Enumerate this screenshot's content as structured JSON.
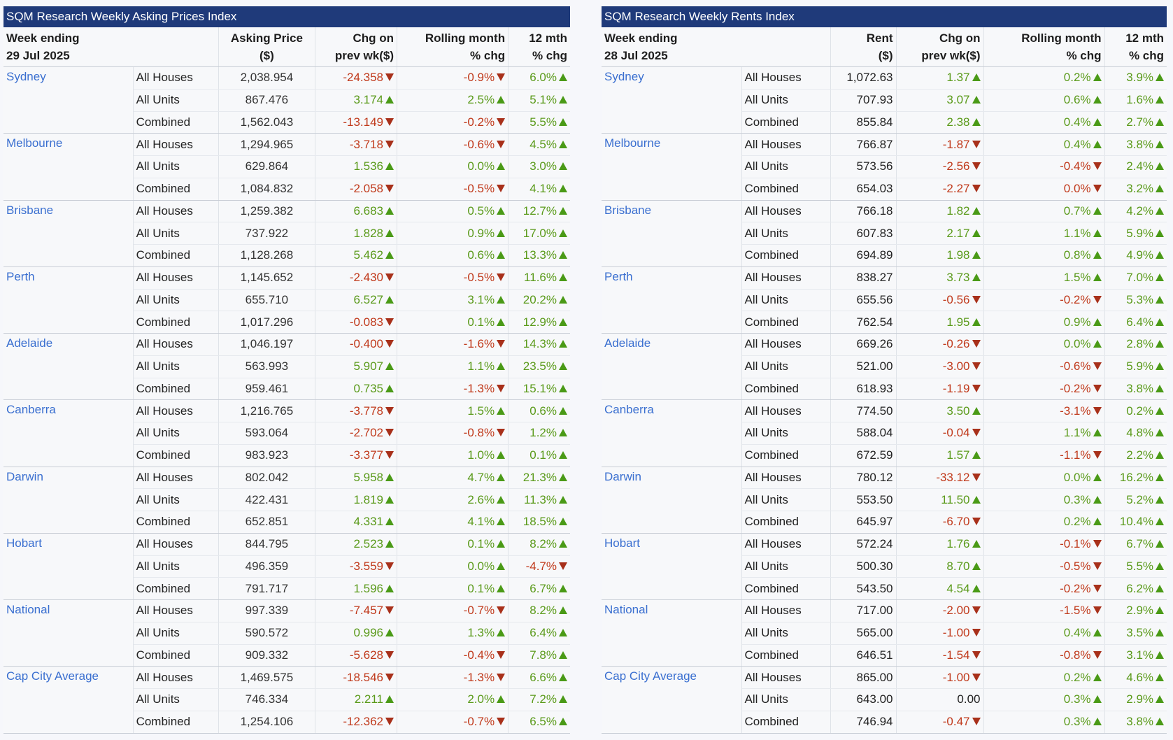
{
  "colors": {
    "header_bg": "#1f3a7a",
    "city": "#3a6fd0",
    "up": "#5a9a1a",
    "down": "#c0391b",
    "up_arrow": "#4a9a16",
    "down_arrow": "#a8301a"
  },
  "asking": {
    "title": "SQM Research Weekly Asking Prices Index",
    "headers": {
      "week_l1": "Week ending",
      "week_l2": "29 Jul 2025",
      "price_l1": "Asking Price",
      "price_l2": "($)",
      "chg_l1": "Chg on",
      "chg_l2": "prev wk($)",
      "roll_l1": "Rolling month",
      "roll_l2": "% chg",
      "mth_l1": "12 mth",
      "mth_l2": "% chg"
    },
    "groups": [
      {
        "city": "Sydney",
        "rows": [
          {
            "type": "All Houses",
            "value": "2,038.954",
            "chg": "-24.358",
            "chg_dir": "down",
            "roll": "-0.9%",
            "roll_dir": "down",
            "yr": "6.0%",
            "yr_dir": "up"
          },
          {
            "type": "All Units",
            "value": "867.476",
            "chg": "3.174",
            "chg_dir": "up",
            "roll": "2.5%",
            "roll_dir": "up",
            "yr": "5.1%",
            "yr_dir": "up"
          },
          {
            "type": "Combined",
            "value": "1,562.043",
            "chg": "-13.149",
            "chg_dir": "down",
            "roll": "-0.2%",
            "roll_dir": "down",
            "yr": "5.5%",
            "yr_dir": "up"
          }
        ]
      },
      {
        "city": "Melbourne",
        "rows": [
          {
            "type": "All Houses",
            "value": "1,294.965",
            "chg": "-3.718",
            "chg_dir": "down",
            "roll": "-0.6%",
            "roll_dir": "down",
            "yr": "4.5%",
            "yr_dir": "up"
          },
          {
            "type": "All Units",
            "value": "629.864",
            "chg": "1.536",
            "chg_dir": "up",
            "roll": "0.0%",
            "roll_dir": "up",
            "yr": "3.0%",
            "yr_dir": "up"
          },
          {
            "type": "Combined",
            "value": "1,084.832",
            "chg": "-2.058",
            "chg_dir": "down",
            "roll": "-0.5%",
            "roll_dir": "down",
            "yr": "4.1%",
            "yr_dir": "up"
          }
        ]
      },
      {
        "city": "Brisbane",
        "rows": [
          {
            "type": "All Houses",
            "value": "1,259.382",
            "chg": "6.683",
            "chg_dir": "up",
            "roll": "0.5%",
            "roll_dir": "up",
            "yr": "12.7%",
            "yr_dir": "up"
          },
          {
            "type": "All Units",
            "value": "737.922",
            "chg": "1.828",
            "chg_dir": "up",
            "roll": "0.9%",
            "roll_dir": "up",
            "yr": "17.0%",
            "yr_dir": "up"
          },
          {
            "type": "Combined",
            "value": "1,128.268",
            "chg": "5.462",
            "chg_dir": "up",
            "roll": "0.6%",
            "roll_dir": "up",
            "yr": "13.3%",
            "yr_dir": "up"
          }
        ]
      },
      {
        "city": "Perth",
        "rows": [
          {
            "type": "All Houses",
            "value": "1,145.652",
            "chg": "-2.430",
            "chg_dir": "down",
            "roll": "-0.5%",
            "roll_dir": "down",
            "yr": "11.6%",
            "yr_dir": "up"
          },
          {
            "type": "All Units",
            "value": "655.710",
            "chg": "6.527",
            "chg_dir": "up",
            "roll": "3.1%",
            "roll_dir": "up",
            "yr": "20.2%",
            "yr_dir": "up"
          },
          {
            "type": "Combined",
            "value": "1,017.296",
            "chg": "-0.083",
            "chg_dir": "down",
            "roll": "0.1%",
            "roll_dir": "up",
            "yr": "12.9%",
            "yr_dir": "up"
          }
        ]
      },
      {
        "city": "Adelaide",
        "rows": [
          {
            "type": "All Houses",
            "value": "1,046.197",
            "chg": "-0.400",
            "chg_dir": "down",
            "roll": "-1.6%",
            "roll_dir": "down",
            "yr": "14.3%",
            "yr_dir": "up"
          },
          {
            "type": "All Units",
            "value": "563.993",
            "chg": "5.907",
            "chg_dir": "up",
            "roll": "1.1%",
            "roll_dir": "up",
            "yr": "23.5%",
            "yr_dir": "up"
          },
          {
            "type": "Combined",
            "value": "959.461",
            "chg": "0.735",
            "chg_dir": "up",
            "roll": "-1.3%",
            "roll_dir": "down",
            "yr": "15.1%",
            "yr_dir": "up"
          }
        ]
      },
      {
        "city": "Canberra",
        "rows": [
          {
            "type": "All Houses",
            "value": "1,216.765",
            "chg": "-3.778",
            "chg_dir": "down",
            "roll": "1.5%",
            "roll_dir": "up",
            "yr": "0.6%",
            "yr_dir": "up"
          },
          {
            "type": "All Units",
            "value": "593.064",
            "chg": "-2.702",
            "chg_dir": "down",
            "roll": "-0.8%",
            "roll_dir": "down",
            "yr": "1.2%",
            "yr_dir": "up"
          },
          {
            "type": "Combined",
            "value": "983.923",
            "chg": "-3.377",
            "chg_dir": "down",
            "roll": "1.0%",
            "roll_dir": "up",
            "yr": "0.1%",
            "yr_dir": "up"
          }
        ]
      },
      {
        "city": "Darwin",
        "rows": [
          {
            "type": "All Houses",
            "value": "802.042",
            "chg": "5.958",
            "chg_dir": "up",
            "roll": "4.7%",
            "roll_dir": "up",
            "yr": "21.3%",
            "yr_dir": "up"
          },
          {
            "type": "All Units",
            "value": "422.431",
            "chg": "1.819",
            "chg_dir": "up",
            "roll": "2.6%",
            "roll_dir": "up",
            "yr": "11.3%",
            "yr_dir": "up"
          },
          {
            "type": "Combined",
            "value": "652.851",
            "chg": "4.331",
            "chg_dir": "up",
            "roll": "4.1%",
            "roll_dir": "up",
            "yr": "18.5%",
            "yr_dir": "up"
          }
        ]
      },
      {
        "city": "Hobart",
        "rows": [
          {
            "type": "All Houses",
            "value": "844.795",
            "chg": "2.523",
            "chg_dir": "up",
            "roll": "0.1%",
            "roll_dir": "up",
            "yr": "8.2%",
            "yr_dir": "up"
          },
          {
            "type": "All Units",
            "value": "496.359",
            "chg": "-3.559",
            "chg_dir": "down",
            "roll": "0.0%",
            "roll_dir": "up",
            "yr": "-4.7%",
            "yr_dir": "down"
          },
          {
            "type": "Combined",
            "value": "791.717",
            "chg": "1.596",
            "chg_dir": "up",
            "roll": "0.1%",
            "roll_dir": "up",
            "yr": "6.7%",
            "yr_dir": "up"
          }
        ]
      },
      {
        "city": "National",
        "rows": [
          {
            "type": "All Houses",
            "value": "997.339",
            "chg": "-7.457",
            "chg_dir": "down",
            "roll": "-0.7%",
            "roll_dir": "down",
            "yr": "8.2%",
            "yr_dir": "up"
          },
          {
            "type": "All Units",
            "value": "590.572",
            "chg": "0.996",
            "chg_dir": "up",
            "roll": "1.3%",
            "roll_dir": "up",
            "yr": "6.4%",
            "yr_dir": "up"
          },
          {
            "type": "Combined",
            "value": "909.332",
            "chg": "-5.628",
            "chg_dir": "down",
            "roll": "-0.4%",
            "roll_dir": "down",
            "yr": "7.8%",
            "yr_dir": "up"
          }
        ]
      },
      {
        "city": "Cap City Average",
        "rows": [
          {
            "type": "All Houses",
            "value": "1,469.575",
            "chg": "-18.546",
            "chg_dir": "down",
            "roll": "-1.3%",
            "roll_dir": "down",
            "yr": "6.6%",
            "yr_dir": "up"
          },
          {
            "type": "All Units",
            "value": "746.334",
            "chg": "2.211",
            "chg_dir": "up",
            "roll": "2.0%",
            "roll_dir": "up",
            "yr": "7.2%",
            "yr_dir": "up"
          },
          {
            "type": "Combined",
            "value": "1,254.106",
            "chg": "-12.362",
            "chg_dir": "down",
            "roll": "-0.7%",
            "roll_dir": "down",
            "yr": "6.5%",
            "yr_dir": "up"
          }
        ]
      }
    ]
  },
  "rents": {
    "title": "SQM Research Weekly Rents Index",
    "headers": {
      "week_l1": "Week ending",
      "week_l2": "28 Jul 2025",
      "price_l1": "Rent",
      "price_l2": "($)",
      "chg_l1": "Chg on",
      "chg_l2": "prev wk($)",
      "roll_l1": "Rolling month",
      "roll_l2": "% chg",
      "mth_l1": "12 mth",
      "mth_l2": "% chg"
    },
    "groups": [
      {
        "city": "Sydney",
        "rows": [
          {
            "type": "All Houses",
            "value": "1,072.63",
            "chg": "1.37",
            "chg_dir": "up",
            "roll": "0.2%",
            "roll_dir": "up",
            "yr": "3.9%",
            "yr_dir": "up"
          },
          {
            "type": "All Units",
            "value": "707.93",
            "chg": "3.07",
            "chg_dir": "up",
            "roll": "0.6%",
            "roll_dir": "up",
            "yr": "1.6%",
            "yr_dir": "up"
          },
          {
            "type": "Combined",
            "value": "855.84",
            "chg": "2.38",
            "chg_dir": "up",
            "roll": "0.4%",
            "roll_dir": "up",
            "yr": "2.7%",
            "yr_dir": "up"
          }
        ]
      },
      {
        "city": "Melbourne",
        "rows": [
          {
            "type": "All Houses",
            "value": "766.87",
            "chg": "-1.87",
            "chg_dir": "down",
            "roll": "0.4%",
            "roll_dir": "up",
            "yr": "3.8%",
            "yr_dir": "up"
          },
          {
            "type": "All Units",
            "value": "573.56",
            "chg": "-2.56",
            "chg_dir": "down",
            "roll": "-0.4%",
            "roll_dir": "down",
            "yr": "2.4%",
            "yr_dir": "up"
          },
          {
            "type": "Combined",
            "value": "654.03",
            "chg": "-2.27",
            "chg_dir": "down",
            "roll": "0.0%",
            "roll_dir": "down",
            "yr": "3.2%",
            "yr_dir": "up"
          }
        ]
      },
      {
        "city": "Brisbane",
        "rows": [
          {
            "type": "All Houses",
            "value": "766.18",
            "chg": "1.82",
            "chg_dir": "up",
            "roll": "0.7%",
            "roll_dir": "up",
            "yr": "4.2%",
            "yr_dir": "up"
          },
          {
            "type": "All Units",
            "value": "607.83",
            "chg": "2.17",
            "chg_dir": "up",
            "roll": "1.1%",
            "roll_dir": "up",
            "yr": "5.9%",
            "yr_dir": "up"
          },
          {
            "type": "Combined",
            "value": "694.89",
            "chg": "1.98",
            "chg_dir": "up",
            "roll": "0.8%",
            "roll_dir": "up",
            "yr": "4.9%",
            "yr_dir": "up"
          }
        ]
      },
      {
        "city": "Perth",
        "rows": [
          {
            "type": "All Houses",
            "value": "838.27",
            "chg": "3.73",
            "chg_dir": "up",
            "roll": "1.5%",
            "roll_dir": "up",
            "yr": "7.0%",
            "yr_dir": "up"
          },
          {
            "type": "All Units",
            "value": "655.56",
            "chg": "-0.56",
            "chg_dir": "down",
            "roll": "-0.2%",
            "roll_dir": "down",
            "yr": "5.3%",
            "yr_dir": "up"
          },
          {
            "type": "Combined",
            "value": "762.54",
            "chg": "1.95",
            "chg_dir": "up",
            "roll": "0.9%",
            "roll_dir": "up",
            "yr": "6.4%",
            "yr_dir": "up"
          }
        ]
      },
      {
        "city": "Adelaide",
        "rows": [
          {
            "type": "All Houses",
            "value": "669.26",
            "chg": "-0.26",
            "chg_dir": "down",
            "roll": "0.0%",
            "roll_dir": "up",
            "yr": "2.8%",
            "yr_dir": "up"
          },
          {
            "type": "All Units",
            "value": "521.00",
            "chg": "-3.00",
            "chg_dir": "down",
            "roll": "-0.6%",
            "roll_dir": "down",
            "yr": "5.9%",
            "yr_dir": "up"
          },
          {
            "type": "Combined",
            "value": "618.93",
            "chg": "-1.19",
            "chg_dir": "down",
            "roll": "-0.2%",
            "roll_dir": "down",
            "yr": "3.8%",
            "yr_dir": "up"
          }
        ]
      },
      {
        "city": "Canberra",
        "rows": [
          {
            "type": "All Houses",
            "value": "774.50",
            "chg": "3.50",
            "chg_dir": "up",
            "roll": "-3.1%",
            "roll_dir": "down",
            "yr": "0.2%",
            "yr_dir": "up"
          },
          {
            "type": "All Units",
            "value": "588.04",
            "chg": "-0.04",
            "chg_dir": "down",
            "roll": "1.1%",
            "roll_dir": "up",
            "yr": "4.8%",
            "yr_dir": "up"
          },
          {
            "type": "Combined",
            "value": "672.59",
            "chg": "1.57",
            "chg_dir": "up",
            "roll": "-1.1%",
            "roll_dir": "down",
            "yr": "2.2%",
            "yr_dir": "up"
          }
        ]
      },
      {
        "city": "Darwin",
        "rows": [
          {
            "type": "All Houses",
            "value": "780.12",
            "chg": "-33.12",
            "chg_dir": "down",
            "roll": "0.0%",
            "roll_dir": "up",
            "yr": "16.2%",
            "yr_dir": "up"
          },
          {
            "type": "All Units",
            "value": "553.50",
            "chg": "11.50",
            "chg_dir": "up",
            "roll": "0.3%",
            "roll_dir": "up",
            "yr": "5.2%",
            "yr_dir": "up"
          },
          {
            "type": "Combined",
            "value": "645.97",
            "chg": "-6.70",
            "chg_dir": "down",
            "roll": "0.2%",
            "roll_dir": "up",
            "yr": "10.4%",
            "yr_dir": "up"
          }
        ]
      },
      {
        "city": "Hobart",
        "rows": [
          {
            "type": "All Houses",
            "value": "572.24",
            "chg": "1.76",
            "chg_dir": "up",
            "roll": "-0.1%",
            "roll_dir": "down",
            "yr": "6.7%",
            "yr_dir": "up"
          },
          {
            "type": "All Units",
            "value": "500.30",
            "chg": "8.70",
            "chg_dir": "up",
            "roll": "-0.5%",
            "roll_dir": "down",
            "yr": "5.5%",
            "yr_dir": "up"
          },
          {
            "type": "Combined",
            "value": "543.50",
            "chg": "4.54",
            "chg_dir": "up",
            "roll": "-0.2%",
            "roll_dir": "down",
            "yr": "6.2%",
            "yr_dir": "up"
          }
        ]
      },
      {
        "city": "National",
        "rows": [
          {
            "type": "All Houses",
            "value": "717.00",
            "chg": "-2.00",
            "chg_dir": "down",
            "roll": "-1.5%",
            "roll_dir": "down",
            "yr": "2.9%",
            "yr_dir": "up"
          },
          {
            "type": "All Units",
            "value": "565.00",
            "chg": "-1.00",
            "chg_dir": "down",
            "roll": "0.4%",
            "roll_dir": "up",
            "yr": "3.5%",
            "yr_dir": "up"
          },
          {
            "type": "Combined",
            "value": "646.51",
            "chg": "-1.54",
            "chg_dir": "down",
            "roll": "-0.8%",
            "roll_dir": "down",
            "yr": "3.1%",
            "yr_dir": "up"
          }
        ]
      },
      {
        "city": "Cap City Average",
        "rows": [
          {
            "type": "All Houses",
            "value": "865.00",
            "chg": "-1.00",
            "chg_dir": "down",
            "roll": "0.2%",
            "roll_dir": "up",
            "yr": "4.6%",
            "yr_dir": "up"
          },
          {
            "type": "All Units",
            "value": "643.00",
            "chg": "0.00",
            "chg_dir": "flat",
            "roll": "0.3%",
            "roll_dir": "up",
            "yr": "2.9%",
            "yr_dir": "up"
          },
          {
            "type": "Combined",
            "value": "746.94",
            "chg": "-0.47",
            "chg_dir": "down",
            "roll": "0.3%",
            "roll_dir": "up",
            "yr": "3.8%",
            "yr_dir": "up"
          }
        ]
      }
    ]
  }
}
